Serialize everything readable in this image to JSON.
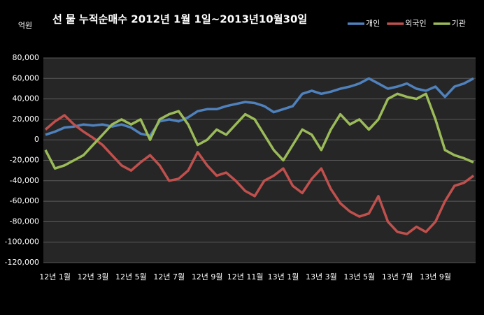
{
  "chart_data": {
    "type": "line",
    "title": "선 물 누적순매수 2012년 1월 1일~2013년10월30일",
    "y_label": "억원",
    "categories": [
      null,
      "12년 1월",
      null,
      null,
      null,
      "12년 3월",
      null,
      null,
      null,
      "12년 5월",
      null,
      null,
      null,
      "12년 7월",
      null,
      null,
      null,
      "12년 9월",
      null,
      null,
      null,
      "12년 11월",
      null,
      null,
      null,
      "13년 1월",
      null,
      null,
      null,
      "13년 3월",
      null,
      null,
      null,
      "13년 5월",
      null,
      null,
      null,
      "13년 7월",
      null,
      null,
      null,
      "13년 9월",
      null,
      null,
      null,
      null
    ],
    "series": [
      {
        "name": "개인",
        "color": "#4f81bd",
        "values": [
          5000,
          8000,
          12000,
          13000,
          15000,
          14000,
          15000,
          13000,
          15000,
          12000,
          6000,
          4000,
          18000,
          20000,
          18000,
          22000,
          28000,
          30000,
          30000,
          33000,
          35000,
          37000,
          36000,
          33000,
          27000,
          30000,
          33000,
          45000,
          48000,
          45000,
          47000,
          50000,
          52000,
          55000,
          60000,
          55000,
          50000,
          52000,
          55000,
          50000,
          48000,
          52000,
          42000,
          52000,
          55000,
          60000
        ]
      },
      {
        "name": "외국인",
        "color": "#c0504d",
        "values": [
          10000,
          18000,
          24000,
          15000,
          8000,
          2000,
          -5000,
          -15000,
          -25000,
          -30000,
          -22000,
          -15000,
          -25000,
          -40000,
          -38000,
          -30000,
          -12000,
          -25000,
          -35000,
          -32000,
          -40000,
          -50000,
          -55000,
          -40000,
          -35000,
          -28000,
          -45000,
          -52000,
          -38000,
          -28000,
          -48000,
          -62000,
          -70000,
          -75000,
          -72000,
          -55000,
          -80000,
          -90000,
          -92000,
          -85000,
          -90000,
          -80000,
          -60000,
          -45000,
          -42000,
          -35000
        ]
      },
      {
        "name": "기관",
        "color": "#9bbb59",
        "values": [
          -10000,
          -28000,
          -25000,
          -20000,
          -15000,
          -5000,
          5000,
          15000,
          20000,
          15000,
          20000,
          0,
          20000,
          25000,
          28000,
          15000,
          -5000,
          0,
          10000,
          5000,
          15000,
          25000,
          20000,
          5000,
          -10000,
          -20000,
          -5000,
          10000,
          5000,
          -10000,
          10000,
          25000,
          15000,
          20000,
          10000,
          20000,
          40000,
          45000,
          42000,
          40000,
          45000,
          20000,
          -10000,
          -15000,
          -18000,
          -22000
        ]
      }
    ],
    "ylim": [
      -120000,
      80000
    ],
    "yticks": [
      {
        "value": -120000,
        "label": "-120,000"
      },
      {
        "value": -100000,
        "label": "-100,000"
      },
      {
        "value": -80000,
        "label": "-80,000"
      },
      {
        "value": -60000,
        "label": "-60,000"
      },
      {
        "value": -40000,
        "label": "-40,000"
      },
      {
        "value": -20000,
        "label": "-20,000"
      },
      0,
      {
        "value": 20000,
        "label": "20,000"
      },
      {
        "value": 40000,
        "label": "40,000"
      },
      {
        "value": 60000,
        "label": "60,000"
      },
      {
        "value": 80000,
        "label": "80,000"
      }
    ],
    "grid": true,
    "legend": "upper right"
  }
}
